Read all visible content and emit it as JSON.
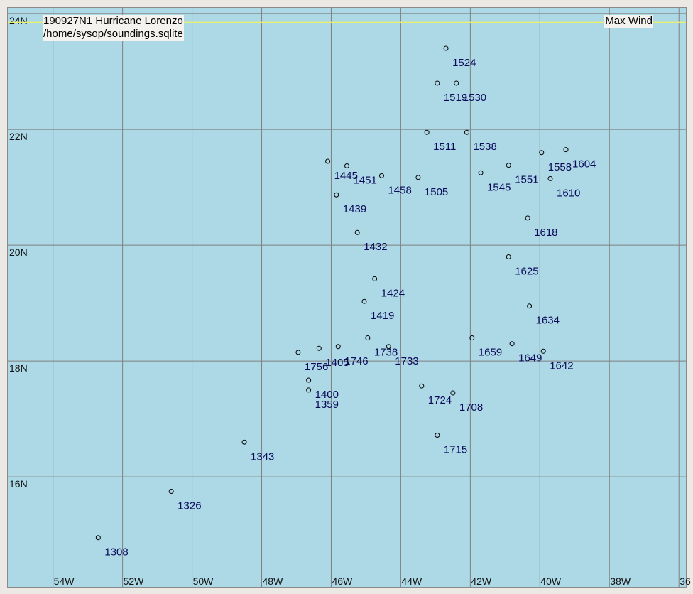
{
  "map": {
    "storm_title": "190927N1 Hurricane Lorenzo",
    "database_path": "/home/sysop/soundings.sqlite",
    "field_label": "Max Wind",
    "highlight_line_color": "#e8f070",
    "highlight_line_lat": 23.85,
    "lon_range": [
      -55.3,
      -35.8
    ],
    "lat_range": [
      14.1,
      24.1
    ],
    "latitude_labels": [
      {
        "value": 24,
        "text": "24N"
      },
      {
        "value": 22,
        "text": "22N"
      },
      {
        "value": 20,
        "text": "20N"
      },
      {
        "value": 18,
        "text": "18N"
      },
      {
        "value": 16,
        "text": "16N"
      }
    ],
    "longitude_labels": [
      {
        "value": -54,
        "text": "54W"
      },
      {
        "value": -52,
        "text": "52W"
      },
      {
        "value": -50,
        "text": "50W"
      },
      {
        "value": -48,
        "text": "48W"
      },
      {
        "value": -46,
        "text": "46W"
      },
      {
        "value": -44,
        "text": "44W"
      },
      {
        "value": -42,
        "text": "42W"
      },
      {
        "value": -40,
        "text": "40W"
      },
      {
        "value": -38,
        "text": "38W"
      },
      {
        "value": -36,
        "text": "36"
      }
    ],
    "observations": [
      {
        "label": "1308",
        "lon": -52.7,
        "lat": 14.95
      },
      {
        "label": "1326",
        "lon": -50.6,
        "lat": 15.75
      },
      {
        "label": "1343",
        "lon": -48.5,
        "lat": 16.6
      },
      {
        "label": "1359",
        "lon": -46.65,
        "lat": 17.5
      },
      {
        "label": "1400",
        "lon": -46.65,
        "lat": 17.67
      },
      {
        "label": "1405",
        "lon": -46.35,
        "lat": 18.22
      },
      {
        "label": "1756",
        "lon": -46.95,
        "lat": 18.15
      },
      {
        "label": "1746",
        "lon": -45.8,
        "lat": 18.25
      },
      {
        "label": "1738",
        "lon": -44.95,
        "lat": 18.4
      },
      {
        "label": "1733",
        "lon": -44.35,
        "lat": 18.25
      },
      {
        "label": "1419",
        "lon": -45.05,
        "lat": 19.03
      },
      {
        "label": "1424",
        "lon": -44.75,
        "lat": 19.42
      },
      {
        "label": "1432",
        "lon": -45.25,
        "lat": 20.22
      },
      {
        "label": "1439",
        "lon": -45.85,
        "lat": 20.87
      },
      {
        "label": "1445",
        "lon": -46.1,
        "lat": 21.45
      },
      {
        "label": "1451",
        "lon": -45.55,
        "lat": 21.37
      },
      {
        "label": "1458",
        "lon": -44.55,
        "lat": 21.2
      },
      {
        "label": "1505",
        "lon": -43.5,
        "lat": 21.17
      },
      {
        "label": "1511",
        "lon": -43.25,
        "lat": 21.95
      },
      {
        "label": "1519",
        "lon": -42.95,
        "lat": 22.8
      },
      {
        "label": "1530",
        "lon": -42.4,
        "lat": 22.8
      },
      {
        "label": "1524",
        "lon": -42.7,
        "lat": 23.4
      },
      {
        "label": "1538",
        "lon": -42.1,
        "lat": 21.95
      },
      {
        "label": "1545",
        "lon": -41.7,
        "lat": 21.25
      },
      {
        "label": "1551",
        "lon": -40.9,
        "lat": 21.38
      },
      {
        "label": "1558",
        "lon": -39.95,
        "lat": 21.6
      },
      {
        "label": "1604",
        "lon": -39.25,
        "lat": 21.65
      },
      {
        "label": "1610",
        "lon": -39.7,
        "lat": 21.15
      },
      {
        "label": "1618",
        "lon": -40.35,
        "lat": 20.47
      },
      {
        "label": "1625",
        "lon": -40.9,
        "lat": 19.8
      },
      {
        "label": "1634",
        "lon": -40.3,
        "lat": 18.95
      },
      {
        "label": "1642",
        "lon": -39.9,
        "lat": 18.17
      },
      {
        "label": "1649",
        "lon": -40.8,
        "lat": 18.3
      },
      {
        "label": "1659",
        "lon": -41.95,
        "lat": 18.4
      },
      {
        "label": "1708",
        "lon": -42.5,
        "lat": 17.45
      },
      {
        "label": "1715",
        "lon": -42.95,
        "lat": 16.72
      },
      {
        "label": "1724",
        "lon": -43.4,
        "lat": 17.57
      }
    ]
  }
}
